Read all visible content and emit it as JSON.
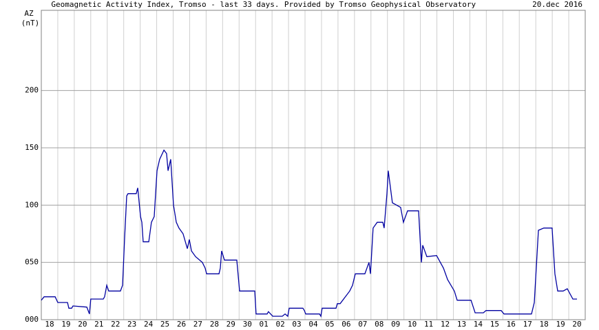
{
  "chart_data": {
    "type": "line",
    "title": "Geomagnetic Activity Index, Tromso - last 33 days.",
    "subtitle": "Provided by Tromso Geophysical Observatory",
    "date": "20.dec 2016",
    "y_label": "AZ",
    "y_unit": "(nT)",
    "xlim": [
      0,
      33
    ],
    "ylim": [
      0,
      270
    ],
    "yticks": [
      {
        "value": 0,
        "label": "000"
      },
      {
        "value": 50,
        "label": "050"
      },
      100,
      150,
      200
    ],
    "xticks": [
      {
        "value": 0.5,
        "label": "18"
      },
      {
        "value": 1.5,
        "label": "19"
      },
      {
        "value": 2.5,
        "label": "20"
      },
      {
        "value": 3.5,
        "label": "21"
      },
      {
        "value": 4.5,
        "label": "22"
      },
      {
        "value": 5.5,
        "label": "23"
      },
      {
        "value": 6.5,
        "label": "24"
      },
      {
        "value": 7.5,
        "label": "25"
      },
      {
        "value": 8.5,
        "label": "26"
      },
      {
        "value": 9.5,
        "label": "27"
      },
      {
        "value": 10.5,
        "label": "28"
      },
      {
        "value": 11.5,
        "label": "29"
      },
      {
        "value": 12.5,
        "label": "30"
      },
      {
        "value": 13.5,
        "label": "01"
      },
      {
        "value": 14.5,
        "label": "02"
      },
      {
        "value": 15.5,
        "label": "03"
      },
      {
        "value": 16.5,
        "label": "04"
      },
      {
        "value": 17.5,
        "label": "05"
      },
      {
        "value": 18.5,
        "label": "06"
      },
      {
        "value": 19.5,
        "label": "07"
      },
      {
        "value": 20.5,
        "label": "08"
      },
      {
        "value": 21.5,
        "label": "09"
      },
      {
        "value": 22.5,
        "label": "10"
      },
      {
        "value": 23.5,
        "label": "11"
      },
      {
        "value": 24.5,
        "label": "12"
      },
      {
        "value": 25.5,
        "label": "13"
      },
      {
        "value": 26.5,
        "label": "14"
      },
      {
        "value": 27.5,
        "label": "15"
      },
      {
        "value": 28.5,
        "label": "16"
      },
      {
        "value": 29.5,
        "label": "17"
      },
      {
        "value": 30.5,
        "label": "18"
      },
      {
        "value": 31.5,
        "label": "19"
      },
      {
        "value": 32.5,
        "label": "20"
      }
    ],
    "grid": true,
    "color": "#0000a0",
    "x": [
      0,
      0.17,
      0.84,
      1.0,
      1.59,
      1.67,
      1.84,
      1.92,
      2.76,
      2.92,
      3.0,
      3.76,
      3.84,
      3.97,
      4.09,
      4.8,
      4.93,
      5.05,
      5.18,
      5.26,
      5.76,
      5.85,
      6.02,
      6.1,
      6.18,
      6.52,
      6.68,
      6.85,
      7.02,
      7.18,
      7.44,
      7.6,
      7.69,
      7.85,
      8.02,
      8.19,
      8.35,
      8.6,
      8.86,
      8.98,
      9.11,
      9.36,
      9.77,
      9.94,
      10.03,
      10.19,
      10.78,
      10.86,
      10.94,
      11.11,
      11.28,
      11.86,
      12.03,
      12.95,
      13.03,
      13.7,
      13.78,
      14.04,
      14.62,
      14.79,
      14.95,
      15.04,
      15.87,
      15.96,
      16.04,
      16.88,
      16.96,
      17.04,
      17.13,
      17.88,
      17.96,
      18.13,
      18.71,
      18.88,
      19.05,
      19.63,
      19.88,
      19.97,
      20.13,
      20.38,
      20.72,
      20.8,
      20.97,
      21.05,
      21.3,
      21.8,
      21.97,
      22.22,
      22.31,
      22.89,
      23.06,
      23.14,
      23.39,
      23.98,
      24.4,
      24.65,
      25.06,
      25.23,
      26.07,
      26.23,
      26.32,
      26.82,
      26.98,
      27.07,
      27.9,
      28.07,
      28.4,
      29.07,
      29.74,
      29.91,
      30.16,
      30.49,
      30.99,
      31.16,
      31.33,
      31.66,
      31.91,
      32.25,
      32.5
    ],
    "values": [
      17,
      20,
      20,
      15,
      15,
      10,
      10,
      12,
      11,
      5,
      18,
      18,
      20,
      30,
      25,
      25,
      30,
      70,
      108,
      110,
      110,
      115,
      90,
      85,
      68,
      68,
      85,
      90,
      130,
      140,
      148,
      145,
      130,
      140,
      100,
      85,
      80,
      75,
      62,
      70,
      60,
      55,
      50,
      45,
      40,
      40,
      40,
      45,
      60,
      52,
      52,
      52,
      25,
      25,
      5,
      5,
      7,
      3,
      3,
      5,
      3,
      10,
      10,
      8,
      5,
      5,
      3,
      10,
      10,
      10,
      14,
      14,
      25,
      30,
      40,
      40,
      50,
      40,
      80,
      85,
      85,
      80,
      110,
      130,
      102,
      98,
      85,
      95,
      95,
      95,
      50,
      65,
      55,
      56,
      45,
      35,
      25,
      17,
      17,
      10,
      6,
      6,
      8,
      8,
      8,
      5,
      5,
      5,
      5,
      15,
      78,
      80,
      80,
      40,
      25,
      25,
      27,
      18,
      18
    ]
  }
}
